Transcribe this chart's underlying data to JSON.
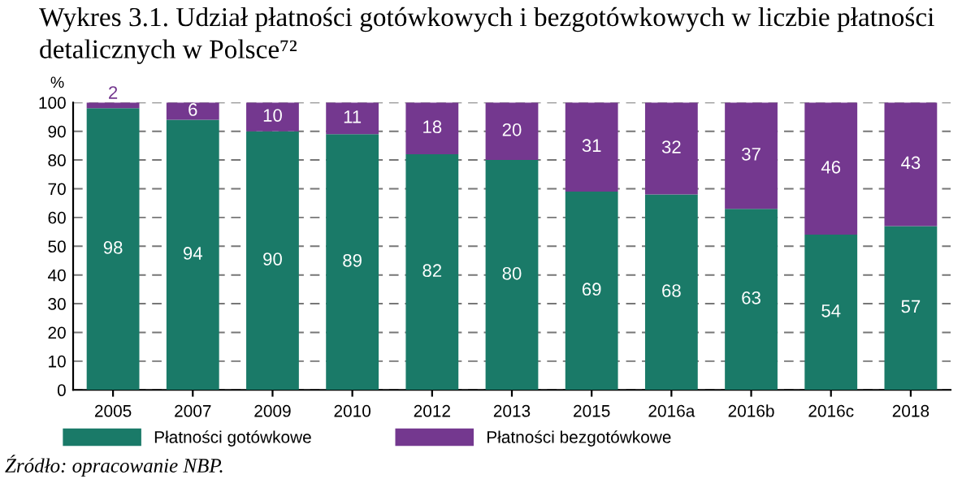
{
  "chart_data": {
    "type": "bar",
    "stacked": true,
    "title": "Wykres 3.1. Udział płatności gotówkowych i bezgotówkowych w liczbie płatności detalicznych w Polsce⁷²",
    "ylabel": "%",
    "categories": [
      "2005",
      "2007",
      "2009",
      "2010",
      "2012",
      "2013",
      "2015",
      "2016a",
      "2016b",
      "2016c",
      "2018"
    ],
    "series": [
      {
        "name": "Płatności gotówkowe",
        "color": "#1a7a68",
        "values": [
          98,
          94,
          90,
          89,
          82,
          80,
          69,
          68,
          63,
          54,
          57
        ]
      },
      {
        "name": "Płatności bezgotówkowe",
        "color": "#74388f",
        "values": [
          2,
          6,
          10,
          11,
          18,
          20,
          31,
          32,
          37,
          46,
          43
        ]
      }
    ],
    "ylim": [
      0,
      100
    ],
    "yticks": [
      0,
      10,
      20,
      30,
      40,
      50,
      60,
      70,
      80,
      90,
      100
    ],
    "grid": "y",
    "legend": "bottom",
    "data_labels": true,
    "annotations": [
      "Źródło: opracowanie NBP."
    ]
  }
}
